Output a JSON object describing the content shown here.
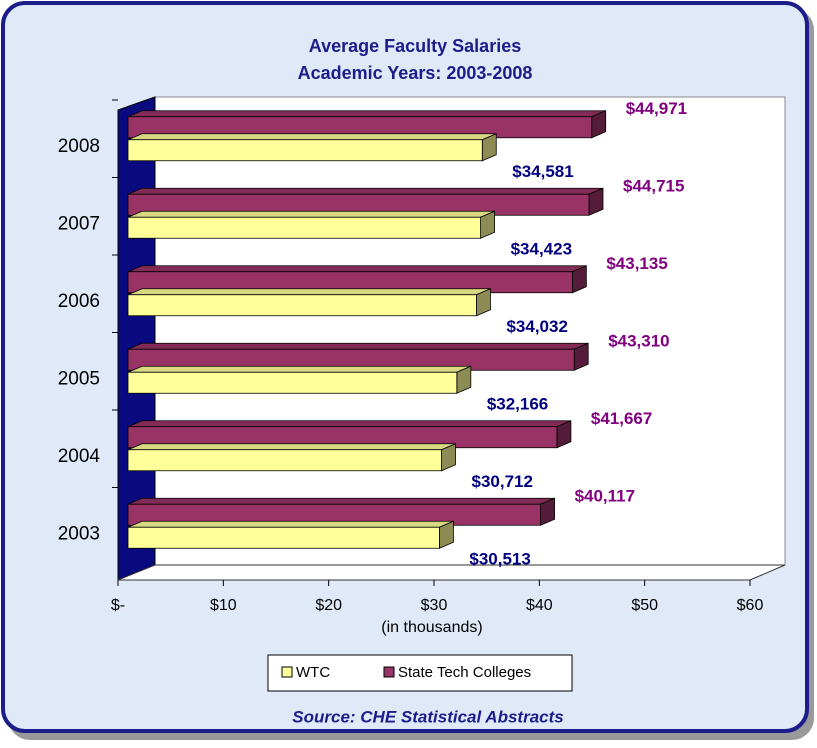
{
  "chart_data": {
    "type": "bar3d_horizontal",
    "title": "Average Faculty Salaries",
    "subtitle": "Academic Years: 2003-2008",
    "categories": [
      "2008",
      "2007",
      "2006",
      "2005",
      "2004",
      "2003"
    ],
    "series": [
      {
        "name": "WTC",
        "color": "#ffff99",
        "label_color": "#000080",
        "values": [
          34.581,
          34.423,
          34.032,
          32.166,
          30.712,
          30.513
        ],
        "value_labels": [
          "$34,581",
          "$34,423",
          "$34,032",
          "$32,166",
          "$30,712",
          "$30,513"
        ]
      },
      {
        "name": "State Tech Colleges",
        "color": "#993366",
        "label_color": "#800080",
        "values": [
          44.971,
          44.715,
          43.135,
          43.31,
          41.667,
          40.117
        ],
        "value_labels": [
          "$44,971",
          "$44,715",
          "$43,135",
          "$43,310",
          "$41,667",
          "$40,117"
        ]
      }
    ],
    "xlim": [
      0,
      60
    ],
    "xticks": [
      {
        "value": 0,
        "label": "$-"
      },
      {
        "value": 10,
        "label": "$10"
      },
      {
        "value": 20,
        "label": "$20"
      },
      {
        "value": 30,
        "label": "$30"
      },
      {
        "value": 40,
        "label": "$40"
      },
      {
        "value": 50,
        "label": "$50"
      },
      {
        "value": 60,
        "label": "$60"
      }
    ],
    "x_label": "(in thousands)",
    "legend": "bottom",
    "source": "Source: CHE Statistical Abstracts"
  }
}
